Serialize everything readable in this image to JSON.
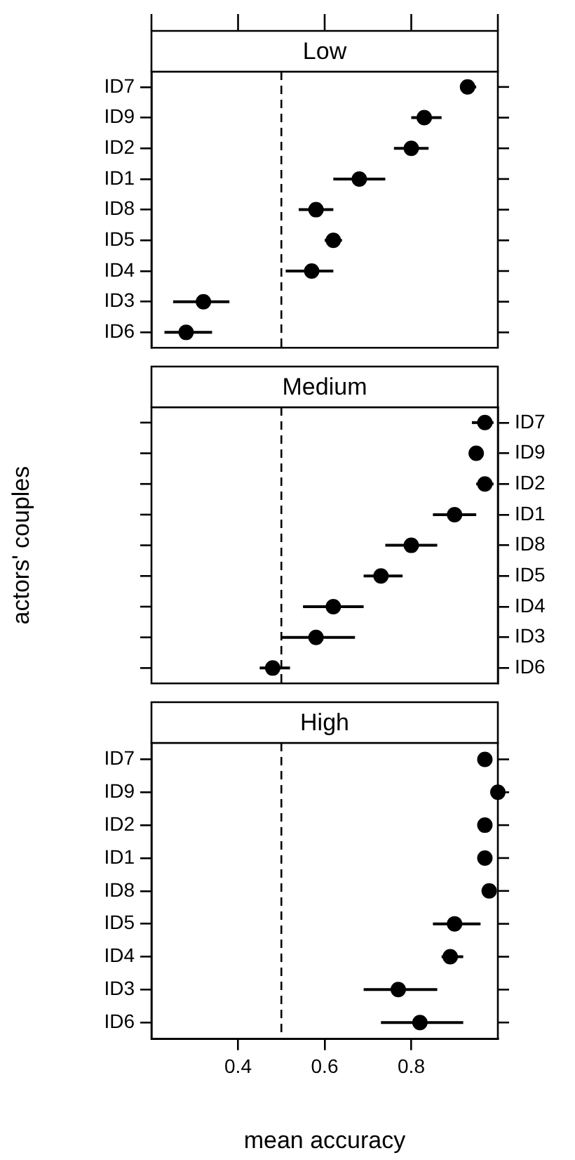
{
  "chart_data": [
    {
      "type": "scatter",
      "orientation": "horizontal",
      "title": "Low",
      "categories": [
        "ID7",
        "ID9",
        "ID2",
        "ID1",
        "ID8",
        "ID5",
        "ID4",
        "ID3",
        "ID6"
      ],
      "color": "#000000",
      "marker": "circle",
      "values": [
        0.93,
        0.83,
        0.8,
        0.68,
        0.58,
        0.62,
        0.57,
        0.32,
        0.28
      ],
      "errors": [
        [
          0.92,
          0.95
        ],
        [
          0.8,
          0.87
        ],
        [
          0.76,
          0.84
        ],
        [
          0.62,
          0.74
        ],
        [
          0.54,
          0.62
        ],
        [
          0.6,
          0.64
        ],
        [
          0.51,
          0.62
        ],
        [
          0.25,
          0.38
        ],
        [
          0.23,
          0.34
        ]
      ],
      "xlim": [
        0.2,
        1.0
      ],
      "xticks": [
        0.4,
        0.6,
        0.8
      ],
      "ref_lines": [
        {
          "axis": "x",
          "value": 0.5,
          "line_style": "dashed"
        }
      ],
      "tick_labels": "y"
    },
    {
      "type": "scatter",
      "orientation": "horizontal",
      "title": "Medium",
      "ylabel": "actors' couples",
      "categories": [
        "ID7",
        "ID9",
        "ID2",
        "ID1",
        "ID8",
        "ID5",
        "ID4",
        "ID3",
        "ID6"
      ],
      "color": "#000000",
      "marker": "circle",
      "values": [
        0.97,
        0.95,
        0.97,
        0.9,
        0.8,
        0.73,
        0.62,
        0.58,
        0.48
      ],
      "errors": [
        [
          0.94,
          0.99
        ],
        null,
        [
          0.95,
          0.99
        ],
        [
          0.85,
          0.95
        ],
        [
          0.74,
          0.86
        ],
        [
          0.69,
          0.78
        ],
        [
          0.55,
          0.69
        ],
        [
          0.5,
          0.67
        ],
        [
          0.45,
          0.52
        ]
      ],
      "xlim": [
        0.2,
        1.0
      ],
      "xticks": [
        0.4,
        0.6,
        0.8
      ],
      "ref_lines": [
        {
          "axis": "x",
          "value": 0.5,
          "line_style": "dashed"
        }
      ],
      "tick_labels": "y"
    },
    {
      "type": "scatter",
      "orientation": "horizontal",
      "title": "High",
      "xlabel": "mean accuracy",
      "categories": [
        "ID7",
        "ID9",
        "ID2",
        "ID1",
        "ID8",
        "ID5",
        "ID4",
        "ID3",
        "ID6"
      ],
      "color": "#000000",
      "marker": "circle",
      "values": [
        0.97,
        1.0,
        0.97,
        0.97,
        0.98,
        0.9,
        0.89,
        0.77,
        0.82
      ],
      "errors": [
        null,
        null,
        null,
        null,
        null,
        [
          0.85,
          0.96
        ],
        [
          0.87,
          0.92
        ],
        [
          0.69,
          0.86
        ],
        [
          0.73,
          0.92
        ]
      ],
      "xlim": [
        0.2,
        1.0
      ],
      "xticks": [
        0.4,
        0.6,
        0.8
      ],
      "ref_lines": [
        {
          "axis": "x",
          "value": 0.5,
          "line_style": "dashed"
        }
      ]
    }
  ]
}
